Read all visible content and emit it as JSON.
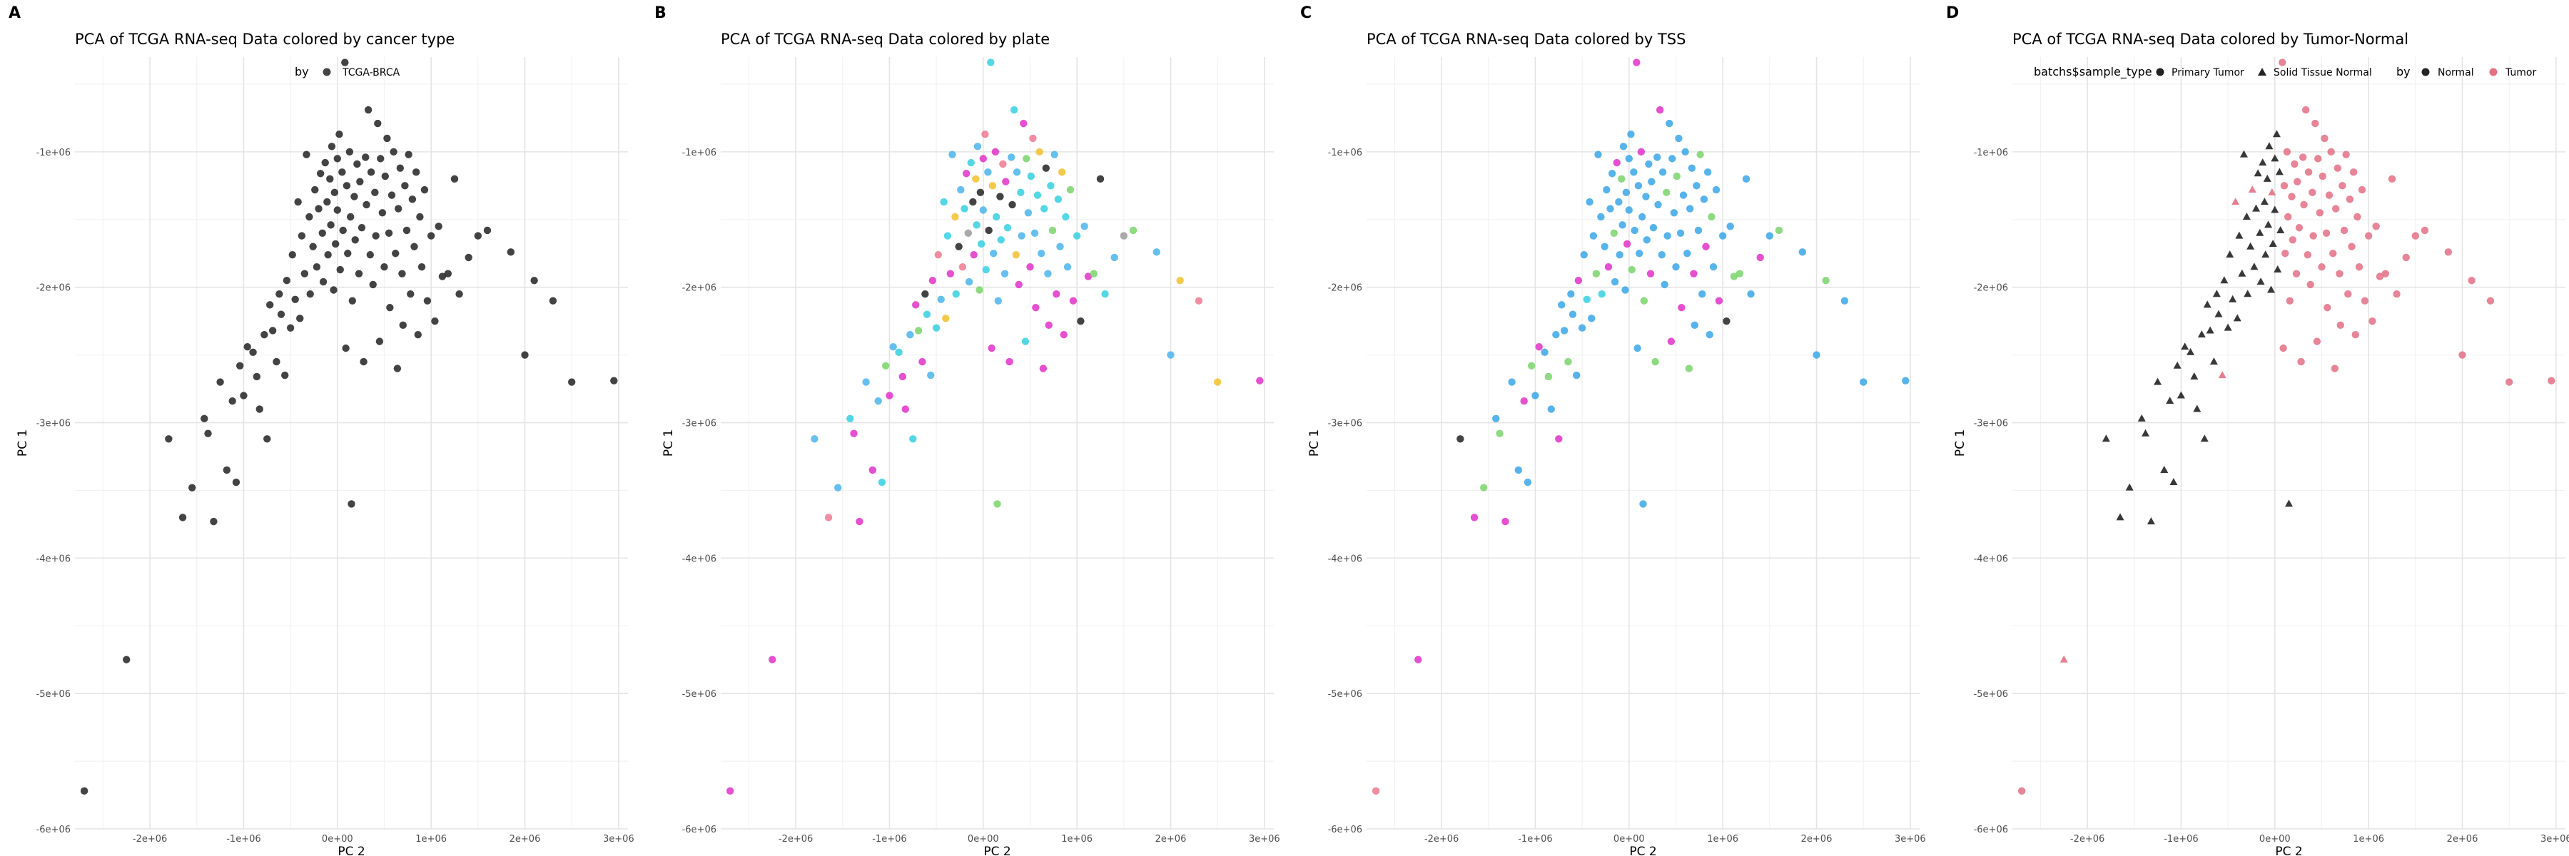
{
  "chart_data": [
    {
      "type": "scatter",
      "panel_label": "A",
      "title": "PCA of TCGA RNA-seq Data colored by cancer type",
      "xlabel": "PC 2",
      "ylabel": "PC 1",
      "xlim": [
        -2800000,
        3100000
      ],
      "ylim": [
        -6000000,
        -300000
      ],
      "x_ticks": [
        "-2e+06",
        "-1e+06",
        "0e+00",
        "1e+06",
        "2e+06",
        "3e+06"
      ],
      "y_ticks": [
        "-1e+06",
        "-2e+06",
        "-3e+06",
        "-4e+06",
        "-5e+06",
        "-6e+06"
      ],
      "grid": true,
      "legend": {
        "position": "top",
        "items": [
          {
            "title": "by",
            "entries": [
              "TCGA-BRCA"
            ]
          }
        ]
      }
    },
    {
      "type": "scatter",
      "panel_label": "B",
      "title": "PCA of TCGA RNA-seq Data colored by plate",
      "xlabel": "PC 2",
      "ylabel": "PC 1",
      "xlim": [
        -2800000,
        3100000
      ],
      "ylim": [
        -6000000,
        -300000
      ],
      "x_ticks": [
        "-2e+06",
        "-1e+06",
        "0e+00",
        "1e+06",
        "2e+06",
        "3e+06"
      ],
      "y_ticks": [
        "-1e+06",
        "-2e+06",
        "-3e+06",
        "-4e+06",
        "-5e+06",
        "-6e+06"
      ],
      "grid": true,
      "legend": {
        "position": "none",
        "items": []
      }
    },
    {
      "type": "scatter",
      "panel_label": "C",
      "title": "PCA of TCGA RNA-seq Data colored by TSS",
      "xlabel": "PC 2",
      "ylabel": "PC 1",
      "xlim": [
        -2800000,
        3100000
      ],
      "ylim": [
        -6000000,
        -300000
      ],
      "x_ticks": [
        "-2e+06",
        "-1e+06",
        "0e+00",
        "1e+06",
        "2e+06",
        "3e+06"
      ],
      "y_ticks": [
        "-1e+06",
        "-2e+06",
        "-3e+06",
        "-4e+06",
        "-5e+06",
        "-6e+06"
      ],
      "grid": true,
      "legend": {
        "position": "none",
        "items": []
      }
    },
    {
      "type": "scatter",
      "panel_label": "D",
      "title": "PCA of TCGA RNA-seq Data colored by Tumor-Normal",
      "xlabel": "PC 2",
      "ylabel": "PC 1",
      "xlim": [
        -2800000,
        3100000
      ],
      "ylim": [
        -6000000,
        -300000
      ],
      "x_ticks": [
        "-2e+06",
        "-1e+06",
        "0e+00",
        "1e+06",
        "2e+06",
        "3e+06"
      ],
      "y_ticks": [
        "-1e+06",
        "-2e+06",
        "-3e+06",
        "-4e+06",
        "-5e+06",
        "-6e+06"
      ],
      "grid": true,
      "legend": {
        "position": "top",
        "items": [
          {
            "title": "batchs$sample_type",
            "entries": [
              "Primary Tumor",
              "Solid Tissue Normal"
            ]
          },
          {
            "title": "by",
            "entries": [
              "Normal",
              "Tumor"
            ]
          }
        ]
      }
    }
  ],
  "points": {
    "fields": [
      "pc2",
      "pc1",
      "plate",
      "tss",
      "sample_type",
      "tumor_normal"
    ],
    "plate_colors": [
      "#222222",
      "#35d0e0",
      "#e030c8",
      "#4ab4ec",
      "#79d36a",
      "#f2c12e",
      "#f07890",
      "#9a9a9a"
    ],
    "tss_colors": [
      "#3aa6e8",
      "#e030c8",
      "#79d36a",
      "#35d0e0",
      "#222222",
      "#f07890"
    ],
    "tumor_normal_colors": [
      "#222222",
      "#e46f85"
    ],
    "rows": [
      [
        -2700000,
        -5720000,
        2,
        5,
        1,
        1
      ],
      [
        -2250000,
        -4750000,
        2,
        1,
        0,
        1
      ],
      [
        -1800000,
        -3120000,
        3,
        4,
        0,
        0
      ],
      [
        -1650000,
        -3700000,
        6,
        1,
        0,
        0
      ],
      [
        -1550000,
        -3480000,
        3,
        2,
        0,
        0
      ],
      [
        -1420000,
        -2970000,
        1,
        0,
        0,
        0
      ],
      [
        -1380000,
        -3080000,
        2,
        2,
        0,
        0
      ],
      [
        -1320000,
        -3730000,
        2,
        1,
        0,
        0
      ],
      [
        -1250000,
        -2700000,
        3,
        0,
        0,
        0
      ],
      [
        -1180000,
        -3350000,
        2,
        0,
        0,
        0
      ],
      [
        -1120000,
        -2840000,
        3,
        1,
        0,
        0
      ],
      [
        -1080000,
        -3440000,
        1,
        0,
        0,
        0
      ],
      [
        -1040000,
        -2580000,
        4,
        2,
        0,
        0
      ],
      [
        -1000000,
        -2800000,
        2,
        0,
        0,
        0
      ],
      [
        -960000,
        -2440000,
        3,
        1,
        0,
        0
      ],
      [
        -900000,
        -2480000,
        1,
        0,
        0,
        0
      ],
      [
        -860000,
        -2660000,
        2,
        2,
        0,
        0
      ],
      [
        -830000,
        -2900000,
        2,
        0,
        0,
        0
      ],
      [
        -780000,
        -2350000,
        3,
        0,
        0,
        0
      ],
      [
        -750000,
        -3120000,
        1,
        1,
        0,
        0
      ],
      [
        -720000,
        -2130000,
        2,
        0,
        0,
        0
      ],
      [
        -690000,
        -2320000,
        4,
        0,
        0,
        0
      ],
      [
        -650000,
        -2550000,
        2,
        2,
        0,
        0
      ],
      [
        -620000,
        -2050000,
        0,
        0,
        0,
        0
      ],
      [
        -600000,
        -2200000,
        1,
        0,
        0,
        0
      ],
      [
        -560000,
        -2650000,
        3,
        0,
        0,
        1
      ],
      [
        -540000,
        -1950000,
        2,
        1,
        0,
        0
      ],
      [
        -500000,
        -2300000,
        1,
        0,
        0,
        0
      ],
      [
        -480000,
        -1760000,
        6,
        0,
        0,
        0
      ],
      [
        -450000,
        -2090000,
        3,
        3,
        0,
        0
      ],
      [
        -420000,
        -1370000,
        1,
        0,
        0,
        1
      ],
      [
        -400000,
        -2230000,
        5,
        0,
        0,
        0
      ],
      [
        -380000,
        -1620000,
        1,
        0,
        0,
        0
      ],
      [
        -350000,
        -1900000,
        2,
        2,
        0,
        0
      ],
      [
        -330000,
        -1020000,
        3,
        0,
        0,
        0
      ],
      [
        -300000,
        -1480000,
        5,
        0,
        0,
        0
      ],
      [
        -290000,
        -2050000,
        1,
        3,
        0,
        0
      ],
      [
        -260000,
        -1700000,
        0,
        0,
        0,
        0
      ],
      [
        -240000,
        -1280000,
        3,
        0,
        0,
        1
      ],
      [
        -220000,
        -1850000,
        6,
        1,
        0,
        0
      ],
      [
        -200000,
        -1420000,
        1,
        0,
        0,
        0
      ],
      [
        -180000,
        -1160000,
        2,
        0,
        0,
        0
      ],
      [
        -160000,
        -1600000,
        7,
        2,
        0,
        0
      ],
      [
        -150000,
        -1960000,
        3,
        0,
        0,
        0
      ],
      [
        -130000,
        -1080000,
        1,
        1,
        0,
        0
      ],
      [
        -110000,
        -1370000,
        0,
        0,
        0,
        0
      ],
      [
        -100000,
        -1760000,
        2,
        0,
        0,
        0
      ],
      [
        -80000,
        -1200000,
        5,
        2,
        0,
        0
      ],
      [
        -70000,
        -1540000,
        1,
        0,
        0,
        0
      ],
      [
        -60000,
        -960000,
        3,
        0,
        0,
        0
      ],
      [
        -40000,
        -2020000,
        4,
        0,
        0,
        0
      ],
      [
        -30000,
        -1300000,
        0,
        0,
        0,
        1
      ],
      [
        -20000,
        -1680000,
        1,
        1,
        0,
        0
      ],
      [
        0,
        -1050000,
        2,
        0,
        0,
        0
      ],
      [
        0,
        -1430000,
        3,
        0,
        0,
        0
      ],
      [
        20000,
        -870000,
        6,
        0,
        0,
        0
      ],
      [
        30000,
        -1870000,
        1,
        2,
        0,
        0
      ],
      [
        50000,
        -1150000,
        3,
        0,
        0,
        0
      ],
      [
        60000,
        -1580000,
        0,
        0,
        0,
        0
      ],
      [
        80000,
        -340000,
        1,
        1,
        1,
        1
      ],
      [
        90000,
        -2450000,
        2,
        0,
        1,
        1
      ],
      [
        100000,
        -1250000,
        5,
        0,
        1,
        1
      ],
      [
        110000,
        -1750000,
        3,
        0,
        1,
        1
      ],
      [
        130000,
        -1000000,
        2,
        1,
        1,
        1
      ],
      [
        140000,
        -1480000,
        1,
        0,
        1,
        1
      ],
      [
        150000,
        -3600000,
        4,
        0,
        0,
        0
      ],
      [
        160000,
        -2100000,
        3,
        2,
        1,
        1
      ],
      [
        180000,
        -1330000,
        0,
        0,
        1,
        1
      ],
      [
        190000,
        -1650000,
        1,
        0,
        1,
        1
      ],
      [
        210000,
        -1090000,
        6,
        0,
        1,
        1
      ],
      [
        230000,
        -1900000,
        3,
        1,
        1,
        1
      ],
      [
        240000,
        -1220000,
        2,
        0,
        1,
        1
      ],
      [
        260000,
        -1560000,
        1,
        0,
        1,
        1
      ],
      [
        280000,
        -2550000,
        2,
        2,
        1,
        1
      ],
      [
        300000,
        -1040000,
        3,
        0,
        1,
        1
      ],
      [
        310000,
        -1390000,
        0,
        0,
        1,
        1
      ],
      [
        330000,
        -690000,
        1,
        1,
        1,
        1
      ],
      [
        350000,
        -1760000,
        5,
        0,
        1,
        1
      ],
      [
        360000,
        -1150000,
        3,
        0,
        1,
        1
      ],
      [
        380000,
        -1980000,
        2,
        0,
        1,
        1
      ],
      [
        400000,
        -1300000,
        1,
        2,
        1,
        1
      ],
      [
        410000,
        -1620000,
        3,
        0,
        1,
        1
      ],
      [
        430000,
        -790000,
        2,
        0,
        1,
        1
      ],
      [
        450000,
        -2400000,
        1,
        1,
        1,
        1
      ],
      [
        460000,
        -1050000,
        4,
        0,
        1,
        1
      ],
      [
        480000,
        -1450000,
        3,
        0,
        1,
        1
      ],
      [
        500000,
        -1850000,
        2,
        0,
        1,
        1
      ],
      [
        510000,
        -1180000,
        1,
        2,
        1,
        1
      ],
      [
        530000,
        -900000,
        6,
        0,
        1,
        1
      ],
      [
        550000,
        -1600000,
        3,
        0,
        1,
        1
      ],
      [
        560000,
        -2150000,
        2,
        1,
        1,
        1
      ],
      [
        580000,
        -1320000,
        1,
        0,
        1,
        1
      ],
      [
        600000,
        -1000000,
        5,
        0,
        1,
        1
      ],
      [
        620000,
        -1750000,
        3,
        0,
        1,
        1
      ],
      [
        640000,
        -2600000,
        2,
        2,
        1,
        1
      ],
      [
        650000,
        -1420000,
        1,
        0,
        1,
        1
      ],
      [
        670000,
        -1120000,
        0,
        0,
        1,
        1
      ],
      [
        690000,
        -1900000,
        3,
        1,
        1,
        1
      ],
      [
        700000,
        -2280000,
        2,
        0,
        1,
        1
      ],
      [
        720000,
        -1250000,
        1,
        0,
        1,
        1
      ],
      [
        740000,
        -1580000,
        4,
        0,
        1,
        1
      ],
      [
        760000,
        -1020000,
        3,
        2,
        1,
        1
      ],
      [
        780000,
        -2050000,
        2,
        0,
        1,
        1
      ],
      [
        800000,
        -1350000,
        1,
        0,
        1,
        1
      ],
      [
        820000,
        -1700000,
        3,
        1,
        1,
        1
      ],
      [
        840000,
        -1150000,
        5,
        0,
        1,
        1
      ],
      [
        860000,
        -2350000,
        2,
        0,
        1,
        1
      ],
      [
        880000,
        -1480000,
        1,
        2,
        1,
        1
      ],
      [
        900000,
        -1850000,
        3,
        0,
        1,
        1
      ],
      [
        930000,
        -1280000,
        4,
        0,
        1,
        1
      ],
      [
        960000,
        -2100000,
        2,
        1,
        1,
        1
      ],
      [
        1000000,
        -1620000,
        1,
        0,
        1,
        1
      ],
      [
        1040000,
        -2250000,
        0,
        4,
        1,
        1
      ],
      [
        1080000,
        -1550000,
        3,
        0,
        1,
        1
      ],
      [
        1120000,
        -1920000,
        2,
        2,
        1,
        1
      ],
      [
        1180000,
        -1900000,
        4,
        2,
        1,
        1
      ],
      [
        1250000,
        -1200000,
        0,
        0,
        1,
        1
      ],
      [
        1300000,
        -2050000,
        1,
        0,
        1,
        1
      ],
      [
        1400000,
        -1780000,
        3,
        1,
        1,
        1
      ],
      [
        1500000,
        -1620000,
        7,
        0,
        1,
        1
      ],
      [
        1600000,
        -1580000,
        4,
        2,
        1,
        1
      ],
      [
        1850000,
        -1740000,
        3,
        0,
        1,
        1
      ],
      [
        2000000,
        -2500000,
        3,
        0,
        1,
        1
      ],
      [
        2100000,
        -1950000,
        5,
        2,
        1,
        1
      ],
      [
        2300000,
        -2100000,
        6,
        0,
        1,
        1
      ],
      [
        2500000,
        -2700000,
        5,
        0,
        1,
        1
      ],
      [
        2950000,
        -2690000,
        2,
        0,
        1,
        1
      ]
    ]
  }
}
